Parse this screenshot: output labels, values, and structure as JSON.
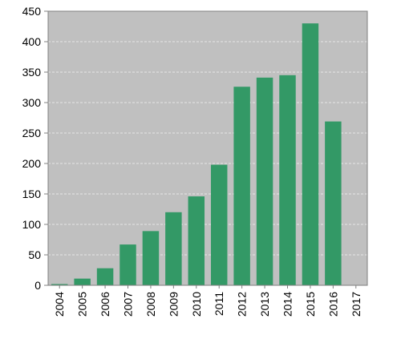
{
  "chart_data": {
    "type": "bar",
    "categories": [
      "2004",
      "2005",
      "2006",
      "2007",
      "2008",
      "2009",
      "2010",
      "2011",
      "2012",
      "2013",
      "2014",
      "2015",
      "2016",
      "2017"
    ],
    "values": [
      2,
      11,
      28,
      67,
      89,
      120,
      146,
      198,
      326,
      341,
      345,
      430,
      269,
      0
    ],
    "ylim": [
      0,
      450
    ],
    "yticks": [
      0,
      50,
      100,
      150,
      200,
      250,
      300,
      350,
      400,
      450
    ],
    "grid": true,
    "legend": "none",
    "title": "",
    "xlabel": "",
    "ylabel": ""
  },
  "colors": {
    "bar": "#339966",
    "plot_background": "#c0c0c0",
    "grid": "#e6e6e6",
    "axis": "#808080"
  }
}
